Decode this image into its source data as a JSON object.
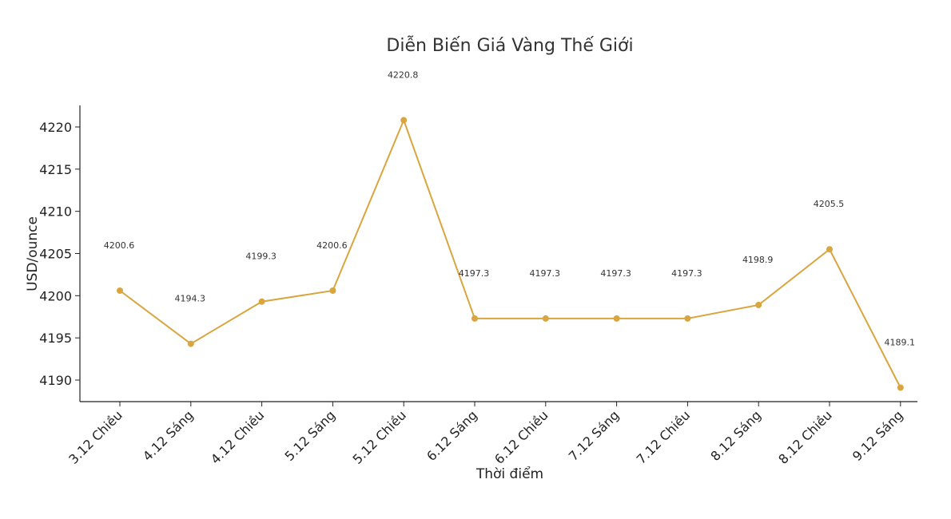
{
  "chart_data": {
    "type": "line",
    "title": "Diễn Biến Giá Vàng Thế Giới",
    "xlabel": "Thời điểm",
    "ylabel": "USD/ounce",
    "categories": [
      "3.12 Chiều",
      "4.12 Sáng",
      "4.12 Chiều",
      "5.12 Sáng",
      "5.12 Chiều",
      "6.12 Sáng",
      "6.12 Chiều",
      "7.12 Sáng",
      "7.12 Chiều",
      "8.12 Sáng",
      "8.12 Chiều",
      "9.12 Sáng"
    ],
    "values": [
      4200.6,
      4194.3,
      4199.3,
      4200.6,
      4220.8,
      4197.3,
      4197.3,
      4197.3,
      4197.3,
      4198.9,
      4205.5,
      4189.1
    ],
    "data_labels": [
      "4200.6",
      "4194.3",
      "4199.3",
      "4200.6",
      "4220.8",
      "4197.3",
      "4197.3",
      "4197.3",
      "4197.3",
      "4198.9",
      "4205.5",
      "4189.1"
    ],
    "yticks": [
      4190,
      4195,
      4200,
      4205,
      4210,
      4215,
      4220
    ],
    "ylim": [
      4187.5,
      4222.5
    ],
    "grid": false,
    "line_color": "#D9A53F"
  }
}
